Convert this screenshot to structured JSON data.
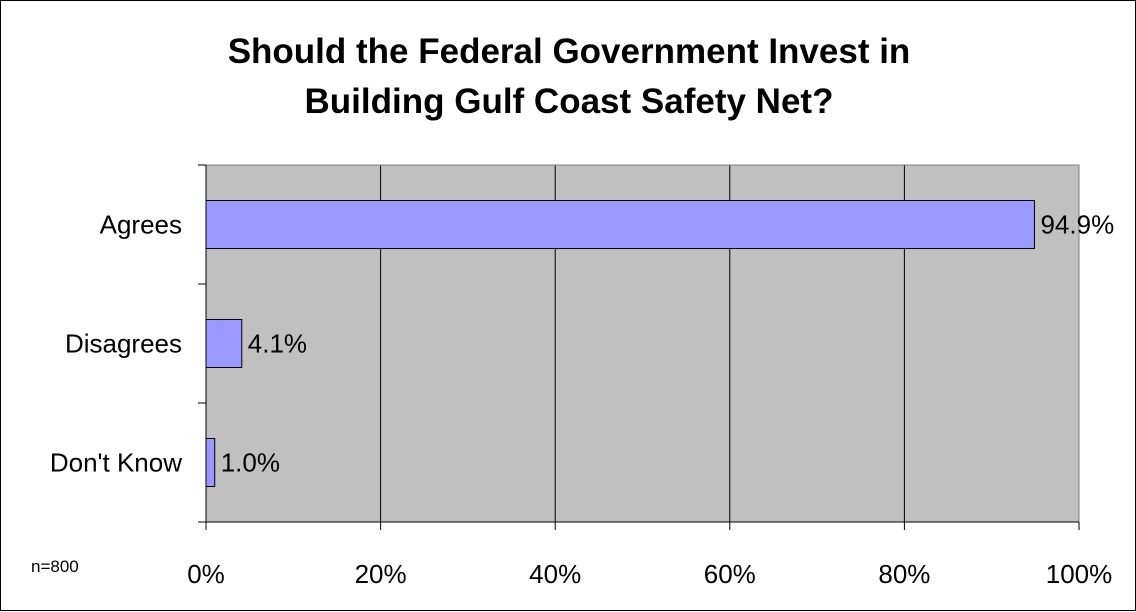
{
  "chart_data": {
    "type": "bar",
    "orientation": "horizontal",
    "title_lines": [
      "Should the Federal Government Invest in",
      "Building Gulf Coast Safety Net?"
    ],
    "categories": [
      "Agrees",
      "Disagrees",
      "Don't Know"
    ],
    "values": [
      94.9,
      4.1,
      1.0
    ],
    "value_labels": [
      "94.9%",
      "4.1%",
      "1.0%"
    ],
    "xlim": [
      0,
      100
    ],
    "xticks": [
      0,
      20,
      40,
      60,
      80,
      100
    ],
    "xtick_labels": [
      "0%",
      "20%",
      "40%",
      "60%",
      "80%",
      "100%"
    ],
    "grid": "vertical",
    "legend": "none",
    "colors": {
      "bar": "#9999ff",
      "plot_bg": "#c0c0c0",
      "bar_edge": "#000000"
    }
  },
  "footnote": "n=800"
}
